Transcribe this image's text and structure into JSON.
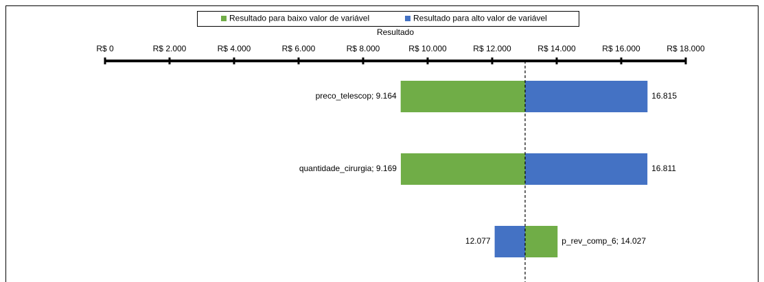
{
  "chart_data": {
    "type": "tornado",
    "xlabel": "Resultado",
    "xlim": [
      0,
      18000
    ],
    "xticks": [
      {
        "value": 0,
        "label": "R$ 0"
      },
      {
        "value": 2000,
        "label": "R$ 2.000"
      },
      {
        "value": 4000,
        "label": "R$ 4.000"
      },
      {
        "value": 6000,
        "label": "R$ 6.000"
      },
      {
        "value": 8000,
        "label": "R$ 8.000"
      },
      {
        "value": 10000,
        "label": "R$ 10.000"
      },
      {
        "value": 12000,
        "label": "R$ 12.000"
      },
      {
        "value": 14000,
        "label": "R$ 14.000"
      },
      {
        "value": 16000,
        "label": "R$ 16.000"
      },
      {
        "value": 18000,
        "label": "R$ 18.000"
      }
    ],
    "base_value": 13021,
    "series": [
      {
        "name": "Resultado para baixo valor de variável",
        "color": "#70ad47",
        "values": [
          9164,
          9169,
          14027
        ],
        "value_labels": [
          "preco_telescop; 9.164",
          "quantidade_cirurgia; 9.169",
          "p_rev_comp_6; 14.027"
        ]
      },
      {
        "name": "Resultado para alto valor de variável",
        "color": "#4472c4",
        "values": [
          16815,
          16811,
          12077
        ],
        "value_labels": [
          "16.815",
          "16.811",
          "12.077"
        ]
      }
    ],
    "legend": "top"
  }
}
